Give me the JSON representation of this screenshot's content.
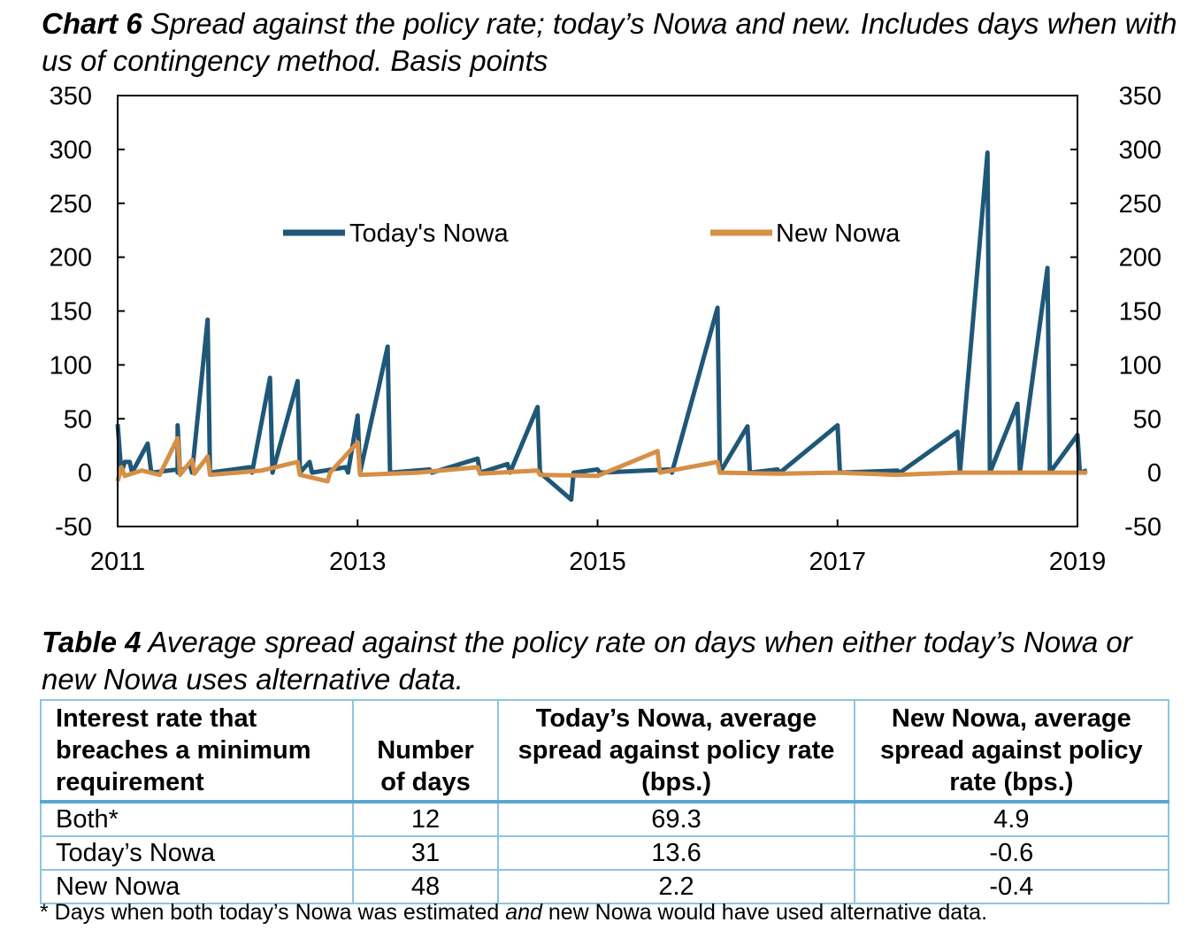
{
  "chart_caption": {
    "label": "Chart 6",
    "text": "Spread against the policy rate; today’s Nowa and new. Includes days when with us of contingency method. Basis points"
  },
  "chart_data": {
    "type": "line",
    "title": "Chart 6 Spread against the policy rate; today’s Nowa and new. Includes days when with us of contingency method. Basis points",
    "ylim": [
      -50,
      350
    ],
    "yticks": [
      -50,
      0,
      50,
      100,
      150,
      200,
      250,
      300,
      350
    ],
    "xlim": [
      2011,
      2019
    ],
    "xticks": [
      "2011",
      "2013",
      "2015",
      "2017",
      "2019"
    ],
    "legend_position": "top-center",
    "grid": false,
    "series": [
      {
        "name": "Today's Nowa",
        "color": "#1f5778",
        "points": [
          [
            2011.0,
            45
          ],
          [
            2011.03,
            0
          ],
          [
            2011.06,
            10
          ],
          [
            2011.1,
            10
          ],
          [
            2011.12,
            0
          ],
          [
            2011.25,
            27
          ],
          [
            2011.28,
            0
          ],
          [
            2011.5,
            3
          ],
          [
            2011.5,
            0
          ],
          [
            2011.5,
            0
          ],
          [
            2011.5,
            44
          ],
          [
            2011.52,
            0
          ],
          [
            2011.6,
            8
          ],
          [
            2011.62,
            0
          ],
          [
            2011.75,
            142
          ],
          [
            2011.77,
            0
          ],
          [
            2012.1,
            5
          ],
          [
            2012.12,
            0
          ],
          [
            2012.27,
            88
          ],
          [
            2012.29,
            0
          ],
          [
            2012.5,
            85
          ],
          [
            2012.52,
            0
          ],
          [
            2012.6,
            10
          ],
          [
            2012.62,
            0
          ],
          [
            2012.9,
            5
          ],
          [
            2012.92,
            0
          ],
          [
            2013.0,
            53
          ],
          [
            2013.02,
            0
          ],
          [
            2013.25,
            117
          ],
          [
            2013.27,
            0
          ],
          [
            2013.6,
            3
          ],
          [
            2013.62,
            0
          ],
          [
            2014.0,
            13
          ],
          [
            2014.02,
            0
          ],
          [
            2014.25,
            8
          ],
          [
            2014.27,
            0
          ],
          [
            2014.5,
            61
          ],
          [
            2014.52,
            0
          ],
          [
            2014.78,
            -25
          ],
          [
            2014.8,
            0
          ],
          [
            2015.0,
            3
          ],
          [
            2015.02,
            0
          ],
          [
            2015.6,
            3
          ],
          [
            2015.62,
            0
          ],
          [
            2016.0,
            153
          ],
          [
            2016.02,
            0
          ],
          [
            2016.25,
            43
          ],
          [
            2016.27,
            0
          ],
          [
            2016.5,
            3
          ],
          [
            2016.52,
            0
          ],
          [
            2017.0,
            44
          ],
          [
            2017.02,
            0
          ],
          [
            2017.5,
            2
          ],
          [
            2017.52,
            0
          ],
          [
            2018.0,
            38
          ],
          [
            2018.02,
            0
          ],
          [
            2018.25,
            297
          ],
          [
            2018.27,
            0
          ],
          [
            2018.5,
            64
          ],
          [
            2018.52,
            0
          ],
          [
            2018.75,
            190
          ],
          [
            2018.77,
            0
          ],
          [
            2019.0,
            35
          ],
          [
            2019.02,
            0
          ],
          [
            2019.08,
            2
          ]
        ]
      },
      {
        "name": "New Nowa",
        "color": "#d68f45",
        "points": [
          [
            2011.0,
            -8
          ],
          [
            2011.03,
            5
          ],
          [
            2011.06,
            -3
          ],
          [
            2011.2,
            2
          ],
          [
            2011.35,
            -2
          ],
          [
            2011.5,
            32
          ],
          [
            2011.52,
            -2
          ],
          [
            2011.62,
            12
          ],
          [
            2011.64,
            -1
          ],
          [
            2011.75,
            15
          ],
          [
            2011.77,
            -2
          ],
          [
            2012.2,
            2
          ],
          [
            2012.5,
            10
          ],
          [
            2012.52,
            -2
          ],
          [
            2012.75,
            -8
          ],
          [
            2012.77,
            0
          ],
          [
            2013.0,
            28
          ],
          [
            2013.02,
            -2
          ],
          [
            2013.5,
            0
          ],
          [
            2014.0,
            5
          ],
          [
            2014.02,
            -1
          ],
          [
            2014.5,
            2
          ],
          [
            2014.52,
            -2
          ],
          [
            2015.0,
            -3
          ],
          [
            2015.5,
            20
          ],
          [
            2015.52,
            0
          ],
          [
            2016.0,
            10
          ],
          [
            2016.02,
            0
          ],
          [
            2016.5,
            -1
          ],
          [
            2017.0,
            0
          ],
          [
            2017.5,
            -2
          ],
          [
            2018.0,
            0
          ],
          [
            2018.5,
            0
          ],
          [
            2019.08,
            0
          ]
        ]
      }
    ]
  },
  "table_caption": {
    "label": "Table 4",
    "text": "Average spread against the policy rate on days when either today’s Nowa or new Nowa uses alternative data."
  },
  "table": {
    "headers": [
      "Interest rate that breaches a minimum requirement",
      "Number of days",
      "Today’s Nowa, average spread against policy rate (bps.)",
      "New Nowa, average spread against policy rate (bps.)"
    ],
    "rows": [
      [
        "Both*",
        "12",
        "69.3",
        "4.9"
      ],
      [
        "Today’s Nowa",
        "31",
        "13.6",
        "-0.6"
      ],
      [
        "New Nowa",
        "48",
        "2.2",
        "-0.4"
      ]
    ]
  },
  "footnote": {
    "before": "* Days when both today’s Nowa was estimated ",
    "emphasis": "and",
    "after": " new Nowa would have used alternative data."
  }
}
